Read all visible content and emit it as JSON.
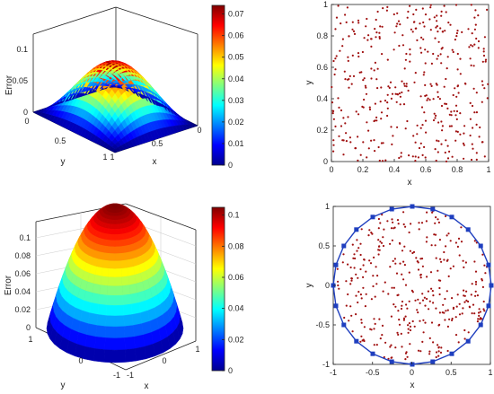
{
  "chart_data": [
    {
      "type": "surface",
      "zlabel": "Error",
      "xlabel": "x",
      "ylabel": "y",
      "x_ticks": [
        "0",
        "0.5",
        "1"
      ],
      "y_ticks": [
        "1",
        "0.5",
        "0"
      ],
      "z_ticks": [
        "0",
        "0.05",
        "0.1"
      ],
      "zlim": [
        0,
        0.1
      ],
      "peak": 0.072,
      "colorbar": {
        "ticks": [
          "0",
          "0.01",
          "0.02",
          "0.03",
          "0.04",
          "0.05",
          "0.06",
          "0.07"
        ],
        "range": [
          0,
          0.074
        ]
      }
    },
    {
      "type": "scatter",
      "xlabel": "x",
      "ylabel": "y",
      "xlim": [
        0,
        1
      ],
      "ylim": [
        0,
        1
      ],
      "x_ticks": [
        "0",
        "0.2",
        "0.4",
        "0.6",
        "0.8",
        "1"
      ],
      "y_ticks": [
        "0",
        "0.2",
        "0.4",
        "0.6",
        "0.8",
        "1"
      ],
      "point_count": 400,
      "point_color": "#a01010"
    },
    {
      "type": "surface",
      "zlabel": "Error",
      "xlabel": "x",
      "ylabel": "y",
      "x_ticks": [
        "-1",
        "0",
        "1"
      ],
      "y_ticks": [
        "1",
        "0",
        "-1"
      ],
      "z_ticks": [
        "0",
        "0.02",
        "0.04",
        "0.06",
        "0.08",
        "0.1"
      ],
      "zlim": [
        0,
        0.1
      ],
      "peak": 0.105,
      "colorbar": {
        "ticks": [
          "0",
          "0.02",
          "0.04",
          "0.06",
          "0.08",
          "0.1"
        ],
        "range": [
          0,
          0.105
        ]
      }
    },
    {
      "type": "scatter",
      "xlabel": "x",
      "ylabel": "y",
      "xlim": [
        -1,
        1
      ],
      "ylim": [
        -1,
        1
      ],
      "x_ticks": [
        "-1",
        "-0.5",
        "0",
        "0.5",
        "1"
      ],
      "y_ticks": [
        "-1",
        "-0.5",
        "0",
        "0.5",
        "1"
      ],
      "point_count": 350,
      "point_color": "#a01010",
      "boundary_points": 24,
      "boundary_color": "#1f3fbf"
    }
  ]
}
